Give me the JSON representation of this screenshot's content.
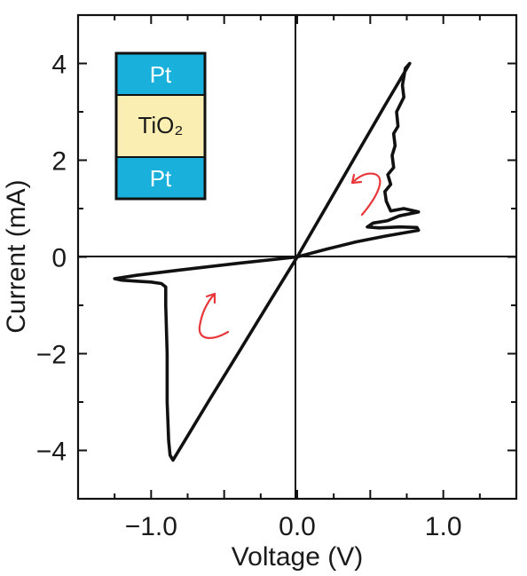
{
  "chart_data": {
    "type": "line",
    "xlabel": "Voltage (V)",
    "ylabel": "Current (mA)",
    "xlim": [
      -1.5,
      1.5
    ],
    "ylim": [
      -5,
      5
    ],
    "x_tick_labels": [
      {
        "value": -1.0,
        "label": "−1.0"
      },
      {
        "value": 0.0,
        "label": "0.0"
      },
      {
        "value": 1.0,
        "label": "1.0"
      }
    ],
    "y_tick_labels": [
      {
        "value": 4,
        "label": "4"
      },
      {
        "value": 2,
        "label": "2"
      },
      {
        "value": 0,
        "label": "0"
      },
      {
        "value": -2,
        "label": "−2"
      },
      {
        "value": -4,
        "label": "−4"
      }
    ],
    "grid": false,
    "zero_lines": true,
    "series": [
      {
        "color": "#111111",
        "points": [
          [
            0.0,
            0.0
          ],
          [
            0.2,
            1.04
          ],
          [
            0.4,
            2.09
          ],
          [
            0.6,
            3.13
          ],
          [
            0.77,
            4.0
          ],
          [
            0.74,
            3.9
          ],
          [
            0.72,
            3.55
          ],
          [
            0.73,
            3.3
          ],
          [
            0.68,
            3.0
          ],
          [
            0.69,
            2.7
          ],
          [
            0.66,
            2.55
          ],
          [
            0.67,
            2.3
          ],
          [
            0.65,
            2.1
          ],
          [
            0.66,
            1.85
          ],
          [
            0.62,
            1.7
          ],
          [
            0.64,
            1.5
          ],
          [
            0.6,
            1.35
          ],
          [
            0.61,
            1.15
          ],
          [
            0.64,
            0.95
          ],
          [
            0.73,
            1.0
          ],
          [
            0.83,
            0.93
          ],
          [
            0.7,
            0.85
          ],
          [
            0.62,
            0.75
          ],
          [
            0.52,
            0.7
          ],
          [
            0.48,
            0.62
          ],
          [
            0.56,
            0.6
          ],
          [
            0.7,
            0.62
          ],
          [
            0.82,
            0.61
          ],
          [
            0.83,
            0.55
          ],
          [
            0.6,
            0.43
          ],
          [
            0.4,
            0.31
          ],
          [
            0.2,
            0.16
          ],
          [
            0.0,
            0.0
          ],
          [
            -0.4,
            -0.13
          ],
          [
            -0.8,
            -0.27
          ],
          [
            -1.1,
            -0.38
          ],
          [
            -1.25,
            -0.45
          ],
          [
            -1.2,
            -0.48
          ],
          [
            -1.1,
            -0.5
          ],
          [
            -1.0,
            -0.52
          ],
          [
            -0.93,
            -0.55
          ],
          [
            -0.9,
            -0.62
          ],
          [
            -0.9,
            -1.0
          ],
          [
            -0.89,
            -2.0
          ],
          [
            -0.89,
            -3.0
          ],
          [
            -0.88,
            -3.8
          ],
          [
            -0.87,
            -4.1
          ],
          [
            -0.85,
            -4.2
          ],
          [
            -0.82,
            -4.05
          ],
          [
            -0.6,
            -2.95
          ],
          [
            -0.4,
            -1.97
          ],
          [
            -0.2,
            -0.98
          ],
          [
            0.0,
            0.0
          ]
        ]
      }
    ],
    "annotations": [
      {
        "type": "arrow",
        "color": "#e8373a",
        "direction": "counter-clockwise",
        "near": [
          0.45,
          1.6
        ]
      },
      {
        "type": "arrow",
        "color": "#e8373a",
        "direction": "clockwise",
        "near": [
          -0.55,
          -1.5
        ]
      }
    ],
    "inset": {
      "layers": [
        {
          "label": "Pt",
          "color": "#1ab0dc"
        },
        {
          "label": "TiO₂",
          "color": "#fbeeb3"
        },
        {
          "label": "Pt",
          "color": "#1ab0dc"
        }
      ]
    }
  }
}
